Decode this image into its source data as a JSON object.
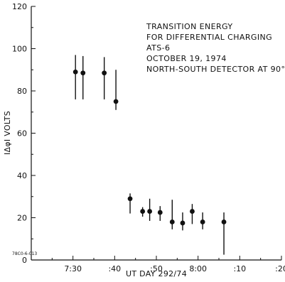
{
  "chart_data": {
    "type": "scatter",
    "title_lines": [
      "TRANSITION ENERGY",
      "FOR DIFFERENTIAL CHARGING",
      "ATS-6",
      "OCTOBER 19, 1974",
      "NORTH-SOUTH DETECTOR AT 90°"
    ],
    "xlabel": "UT DAY 292/74",
    "ylabel": "IΔφI VOLTS",
    "x_unit": "minutes after 7:20 UT",
    "xlim": [
      0,
      60
    ],
    "ylim": [
      0,
      120
    ],
    "x_ticks": [
      {
        "value": 10,
        "label": "7:30"
      },
      {
        "value": 20,
        "label": ":40"
      },
      {
        "value": 30,
        "label": ":50"
      },
      {
        "value": 40,
        "label": "8:00"
      },
      {
        "value": 50,
        "label": ":10"
      },
      {
        "value": 60,
        "label": ":20"
      }
    ],
    "y_ticks": [
      {
        "value": 0,
        "label": "0"
      },
      {
        "value": 20,
        "label": "20"
      },
      {
        "value": 40,
        "label": "40"
      },
      {
        "value": 60,
        "label": "60"
      },
      {
        "value": 80,
        "label": "80"
      },
      {
        "value": 100,
        "label": "100"
      },
      {
        "value": 120,
        "label": "120"
      }
    ],
    "points": [
      {
        "x": 10.6,
        "y": 89,
        "lo": 76,
        "hi": 97
      },
      {
        "x": 12.4,
        "y": 88.5,
        "lo": 76,
        "hi": 96.5
      },
      {
        "x": 17.5,
        "y": 88.5,
        "lo": 76,
        "hi": 96
      },
      {
        "x": 20.3,
        "y": 75,
        "lo": 71,
        "hi": 90
      },
      {
        "x": 23.7,
        "y": 29,
        "lo": 22,
        "hi": 31.5
      },
      {
        "x": 26.7,
        "y": 23,
        "lo": 20.5,
        "hi": 25
      },
      {
        "x": 28.4,
        "y": 23,
        "lo": 18.5,
        "hi": 29
      },
      {
        "x": 30.9,
        "y": 22.5,
        "lo": 18.5,
        "hi": 25.5
      },
      {
        "x": 33.8,
        "y": 18,
        "lo": 14.5,
        "hi": 28.5
      },
      {
        "x": 36.3,
        "y": 17.5,
        "lo": 14,
        "hi": 22.5
      },
      {
        "x": 38.6,
        "y": 23,
        "lo": 17,
        "hi": 26.5
      },
      {
        "x": 41.1,
        "y": 18,
        "lo": 14.5,
        "hi": 22.5
      },
      {
        "x": 46.2,
        "y": 18,
        "lo": 2.5,
        "hi": 22.5
      }
    ],
    "grid": false,
    "legend": "none",
    "annotations": [
      "78C0-6-013"
    ],
    "colors": {
      "ink": "#111111",
      "background": "#ffffff"
    }
  }
}
